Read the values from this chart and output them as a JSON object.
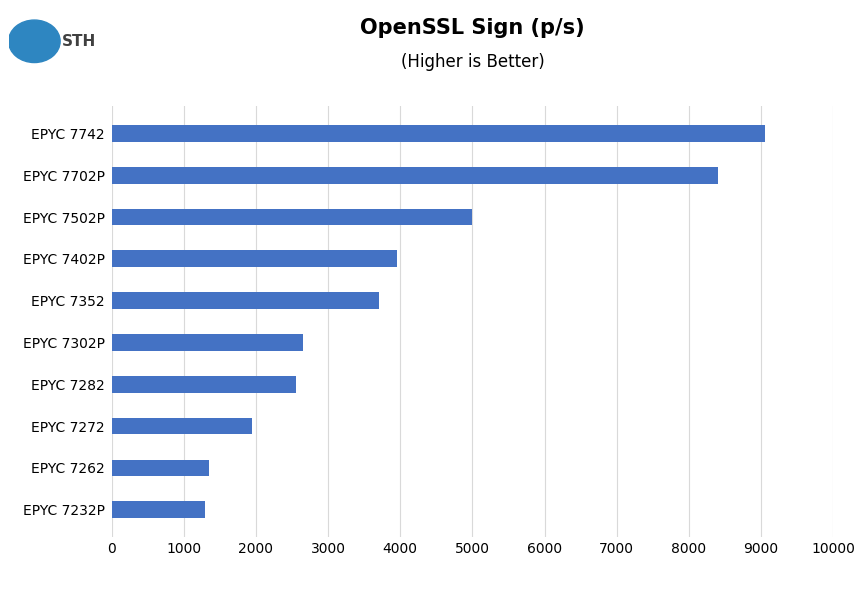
{
  "title": "OpenSSL Sign (p/s)",
  "subtitle": "(Higher is Better)",
  "categories": [
    "EPYC 7232P",
    "EPYC 7262",
    "EPYC 7272",
    "EPYC 7282",
    "EPYC 7302P",
    "EPYC 7352",
    "EPYC 7402P",
    "EPYC 7502P",
    "EPYC 7702P",
    "EPYC 7742"
  ],
  "values": [
    1300,
    1350,
    1950,
    2550,
    2650,
    3700,
    3950,
    5000,
    8400,
    9050
  ],
  "bar_color": "#4472C4",
  "xlim": [
    0,
    10000
  ],
  "xticks": [
    0,
    1000,
    2000,
    3000,
    4000,
    5000,
    6000,
    7000,
    8000,
    9000,
    10000
  ],
  "background_color": "#ffffff",
  "grid_color": "#d9d9d9",
  "title_fontsize": 15,
  "subtitle_fontsize": 12,
  "tick_fontsize": 10,
  "label_fontsize": 10,
  "bar_height": 0.4
}
